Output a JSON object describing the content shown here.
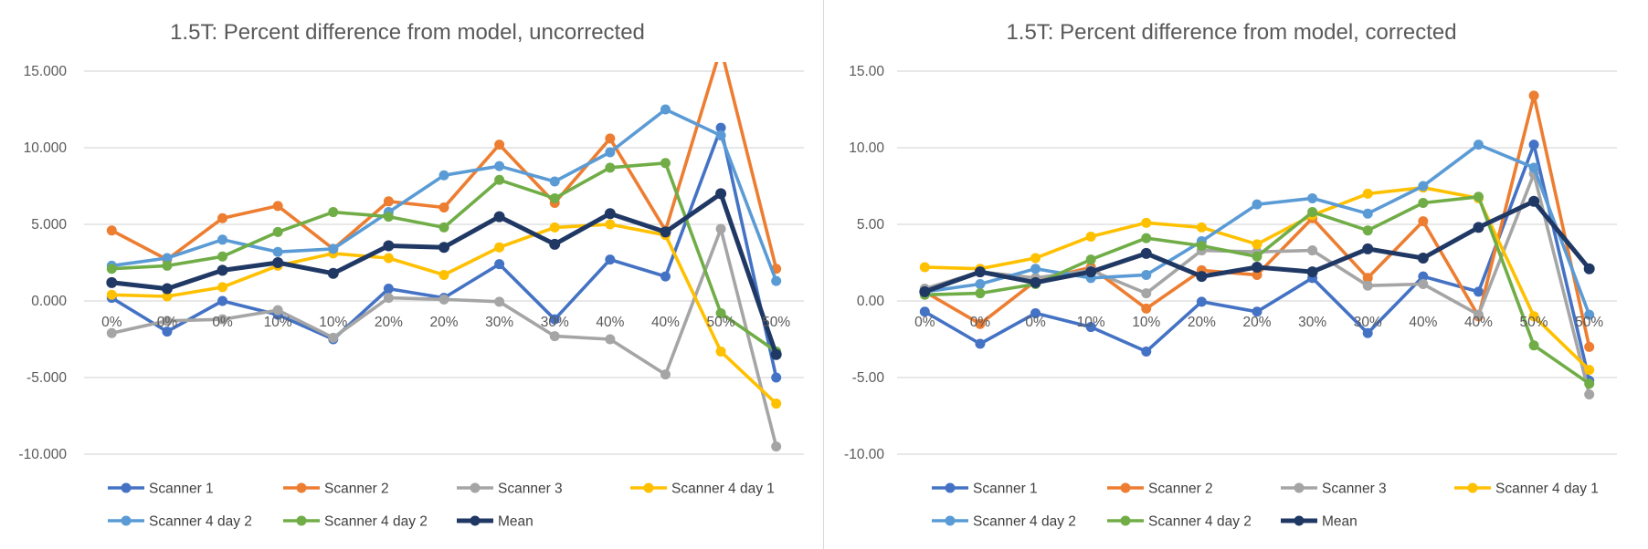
{
  "chart_data": [
    {
      "type": "line",
      "title": "1.5T: Percent difference from model, uncorrected",
      "categories": [
        "0%",
        "0%",
        "0%",
        "10%",
        "10%",
        "20%",
        "20%",
        "30%",
        "30%",
        "40%",
        "40%",
        "50%",
        "50%"
      ],
      "ylim": [
        -10,
        15
      ],
      "yticks": [
        -10,
        -5,
        0,
        5,
        10,
        15
      ],
      "ytick_labels": [
        "-10.000",
        "-5.000",
        "0.000",
        "5.000",
        "10.000",
        "15.000"
      ],
      "xlabel": "",
      "ylabel": "",
      "grid": true,
      "legend_position": "bottom",
      "series": [
        {
          "name": "Scanner 1",
          "color": "#4472C4",
          "values": [
            0.2,
            -2.0,
            0.0,
            -0.9,
            -2.5,
            0.8,
            0.2,
            2.4,
            -1.2,
            2.7,
            1.6,
            11.3,
            -5.0
          ]
        },
        {
          "name": "Scanner 2",
          "color": "#ED7D31",
          "values": [
            4.6,
            2.7,
            5.4,
            6.2,
            3.4,
            6.5,
            6.1,
            10.2,
            6.4,
            10.6,
            4.6,
            16.5,
            2.1
          ]
        },
        {
          "name": "Scanner 3",
          "color": "#A5A5A5",
          "values": [
            -2.1,
            -1.3,
            -1.2,
            -0.6,
            -2.4,
            0.2,
            0.1,
            -0.05,
            -2.3,
            -2.5,
            -4.8,
            4.7,
            -9.5
          ]
        },
        {
          "name": "Scanner 4 day 1",
          "color": "#FFC000",
          "values": [
            0.4,
            0.3,
            0.9,
            2.3,
            3.1,
            2.8,
            1.7,
            3.5,
            4.8,
            5.0,
            4.3,
            -3.3,
            -6.7
          ]
        },
        {
          "name": "Scanner 4 day 2",
          "color": "#5B9BD5",
          "values": [
            2.3,
            2.8,
            4.0,
            3.2,
            3.4,
            5.8,
            8.2,
            8.8,
            7.8,
            9.7,
            12.5,
            10.8,
            1.3
          ]
        },
        {
          "name": "Scanner 4 day 2",
          "color": "#70AD47",
          "values": [
            2.1,
            2.3,
            2.9,
            4.5,
            5.8,
            5.5,
            4.8,
            7.9,
            6.7,
            8.7,
            9.0,
            -0.8,
            -3.3
          ]
        },
        {
          "name": "Mean",
          "color": "#203864",
          "values": [
            1.2,
            0.8,
            2.0,
            2.5,
            1.8,
            3.6,
            3.5,
            5.5,
            3.7,
            5.7,
            4.5,
            7.0,
            -3.5
          ]
        }
      ]
    },
    {
      "type": "line",
      "title": "1.5T: Percent difference from model, corrected",
      "categories": [
        "0%",
        "0%",
        "0%",
        "10%",
        "10%",
        "20%",
        "20%",
        "30%",
        "30%",
        "40%",
        "40%",
        "50%",
        "50%"
      ],
      "ylim": [
        -10,
        15
      ],
      "yticks": [
        -10,
        -5,
        0,
        5,
        10,
        15
      ],
      "ytick_labels": [
        "-10.00",
        "-5.00",
        "0.00",
        "5.00",
        "10.00",
        "15.00"
      ],
      "xlabel": "",
      "ylabel": "",
      "grid": true,
      "legend_position": "bottom",
      "series": [
        {
          "name": "Scanner 1",
          "color": "#4472C4",
          "values": [
            -0.7,
            -2.8,
            -0.8,
            -1.7,
            -3.3,
            -0.05,
            -0.7,
            1.5,
            -2.1,
            1.6,
            0.6,
            10.2,
            -5.2
          ]
        },
        {
          "name": "Scanner 2",
          "color": "#ED7D31",
          "values": [
            0.6,
            -1.5,
            1.3,
            2.2,
            -0.5,
            2.0,
            1.7,
            5.4,
            1.5,
            5.2,
            -1.0,
            13.4,
            -3.0
          ]
        },
        {
          "name": "Scanner 3",
          "color": "#A5A5A5",
          "values": [
            0.8,
            1.9,
            1.5,
            2.0,
            0.5,
            3.3,
            3.2,
            3.3,
            1.0,
            1.1,
            -0.9,
            8.3,
            -6.1
          ]
        },
        {
          "name": "Scanner 4 day 1",
          "color": "#FFC000",
          "values": [
            2.2,
            2.1,
            2.8,
            4.2,
            5.1,
            4.8,
            3.7,
            5.6,
            7.0,
            7.4,
            6.7,
            -1.0,
            -4.5
          ]
        },
        {
          "name": "Scanner 4 day 2",
          "color": "#5B9BD5",
          "values": [
            0.6,
            1.1,
            2.1,
            1.5,
            1.7,
            3.9,
            6.3,
            6.7,
            5.7,
            7.5,
            10.2,
            8.7,
            -0.9
          ]
        },
        {
          "name": "Scanner 4 day 2",
          "color": "#70AD47",
          "values": [
            0.4,
            0.5,
            1.1,
            2.7,
            4.1,
            3.6,
            2.9,
            5.8,
            4.6,
            6.4,
            6.8,
            -2.9,
            -5.4
          ]
        },
        {
          "name": "Mean",
          "color": "#203864",
          "values": [
            0.6,
            1.9,
            1.2,
            1.9,
            3.1,
            1.6,
            2.2,
            1.9,
            3.4,
            2.8,
            4.8,
            6.5,
            2.1
          ]
        }
      ]
    }
  ]
}
